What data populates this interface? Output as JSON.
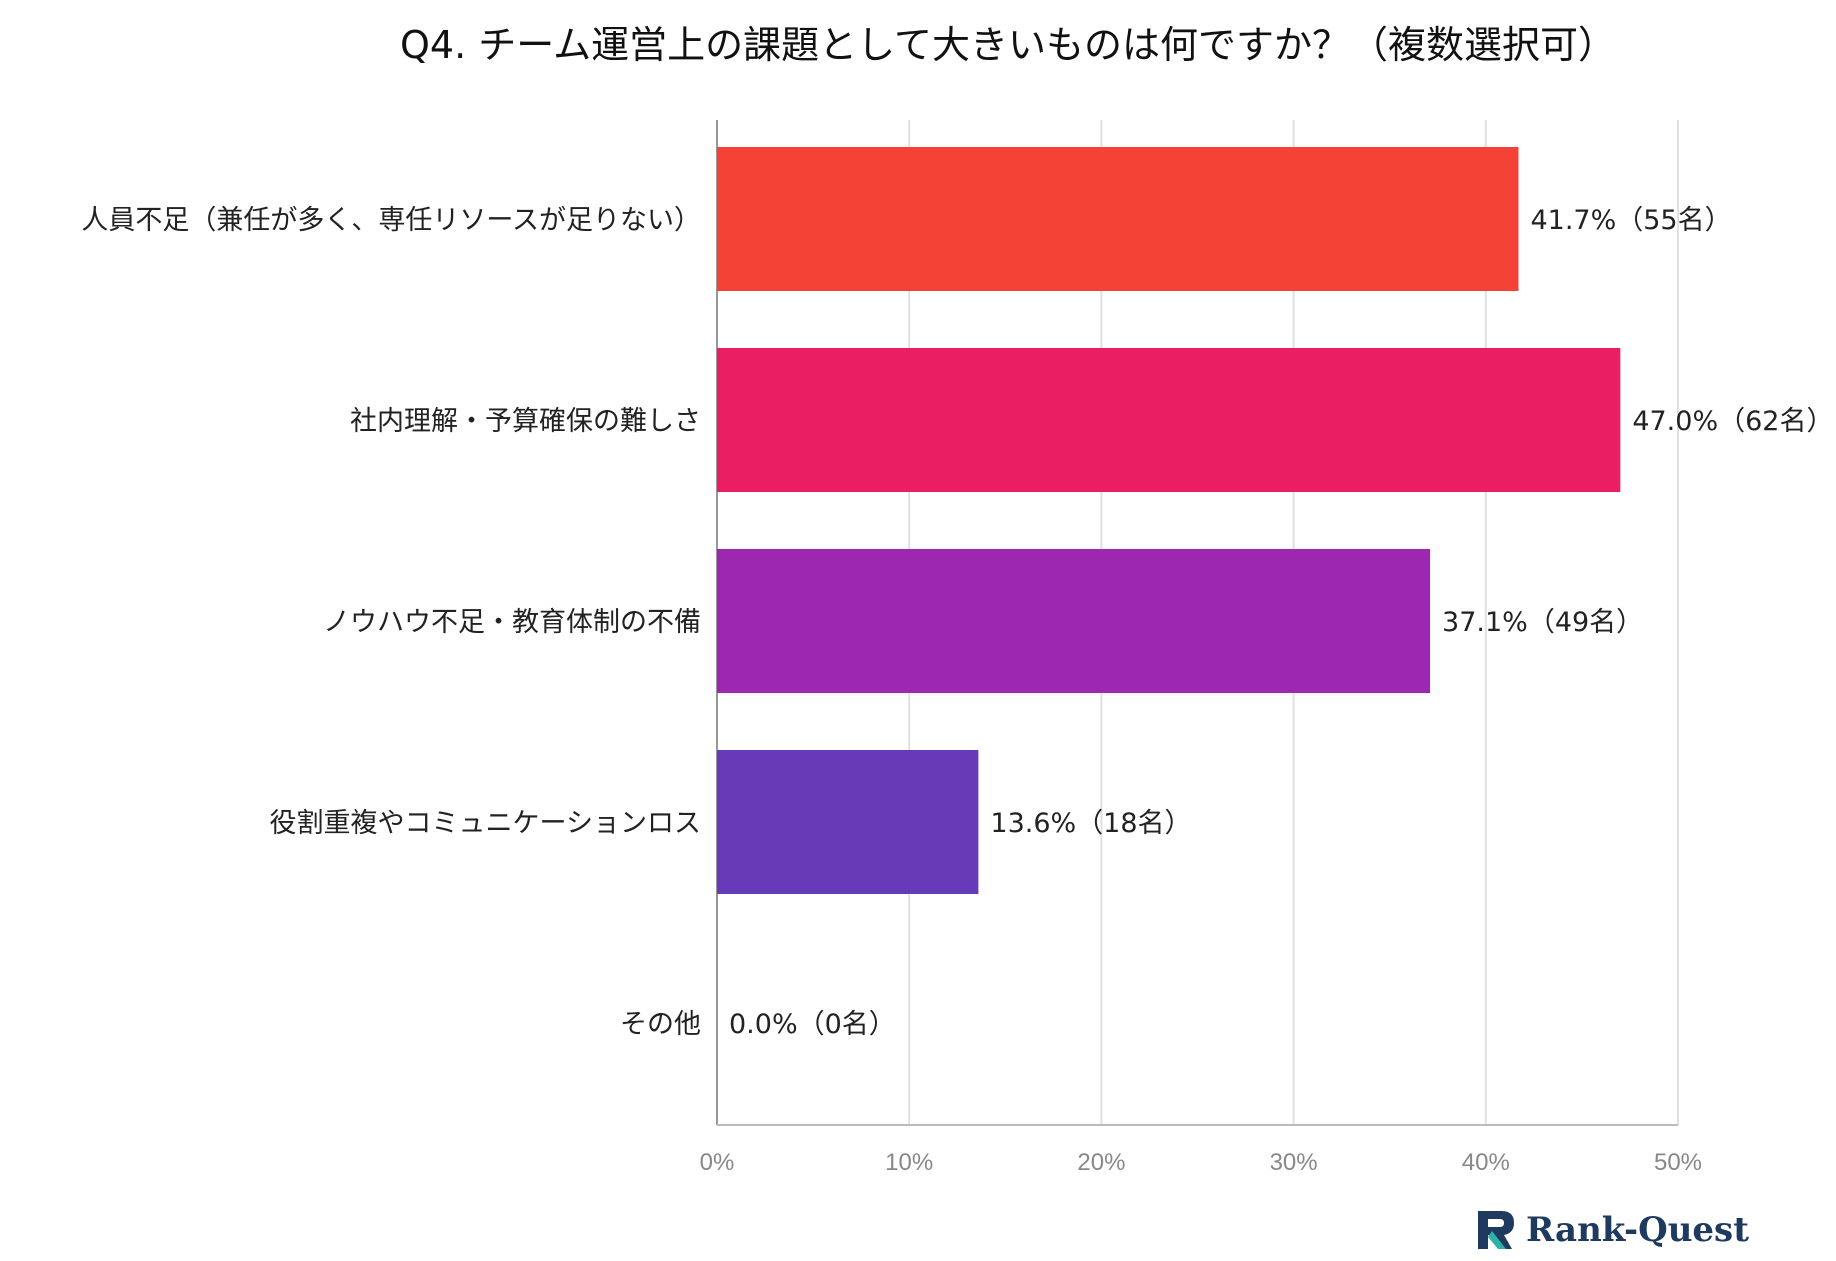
{
  "chart_data": {
    "type": "bar",
    "orientation": "horizontal",
    "title": "Q4. チーム運営上の課題として大きいものは何ですか？（複数選択可）",
    "categories": [
      "人員不足（兼任が多く、専任リソースが足りない）",
      "社内理解・予算確保の難しさ",
      "ノウハウ不足・教育体制の不備",
      "役割重複やコミュニケーションロス",
      "その他"
    ],
    "values": [
      41.7,
      47.0,
      37.1,
      13.6,
      0.0
    ],
    "data_labels": [
      "41.7%（55名）",
      "47.0%（62名）",
      "37.1%（49名）",
      "13.6%（18名）",
      "0.0%（0名）"
    ],
    "colors": [
      "#f44336",
      "#e91e63",
      "#9c27b0",
      "#673ab7",
      "#9e9e9e"
    ],
    "xlim": [
      0,
      50
    ],
    "x_ticks": [
      "0%",
      "10%",
      "20%",
      "30%",
      "40%",
      "50%"
    ],
    "grid": true
  },
  "brand": {
    "name": "Rank-Quest"
  }
}
